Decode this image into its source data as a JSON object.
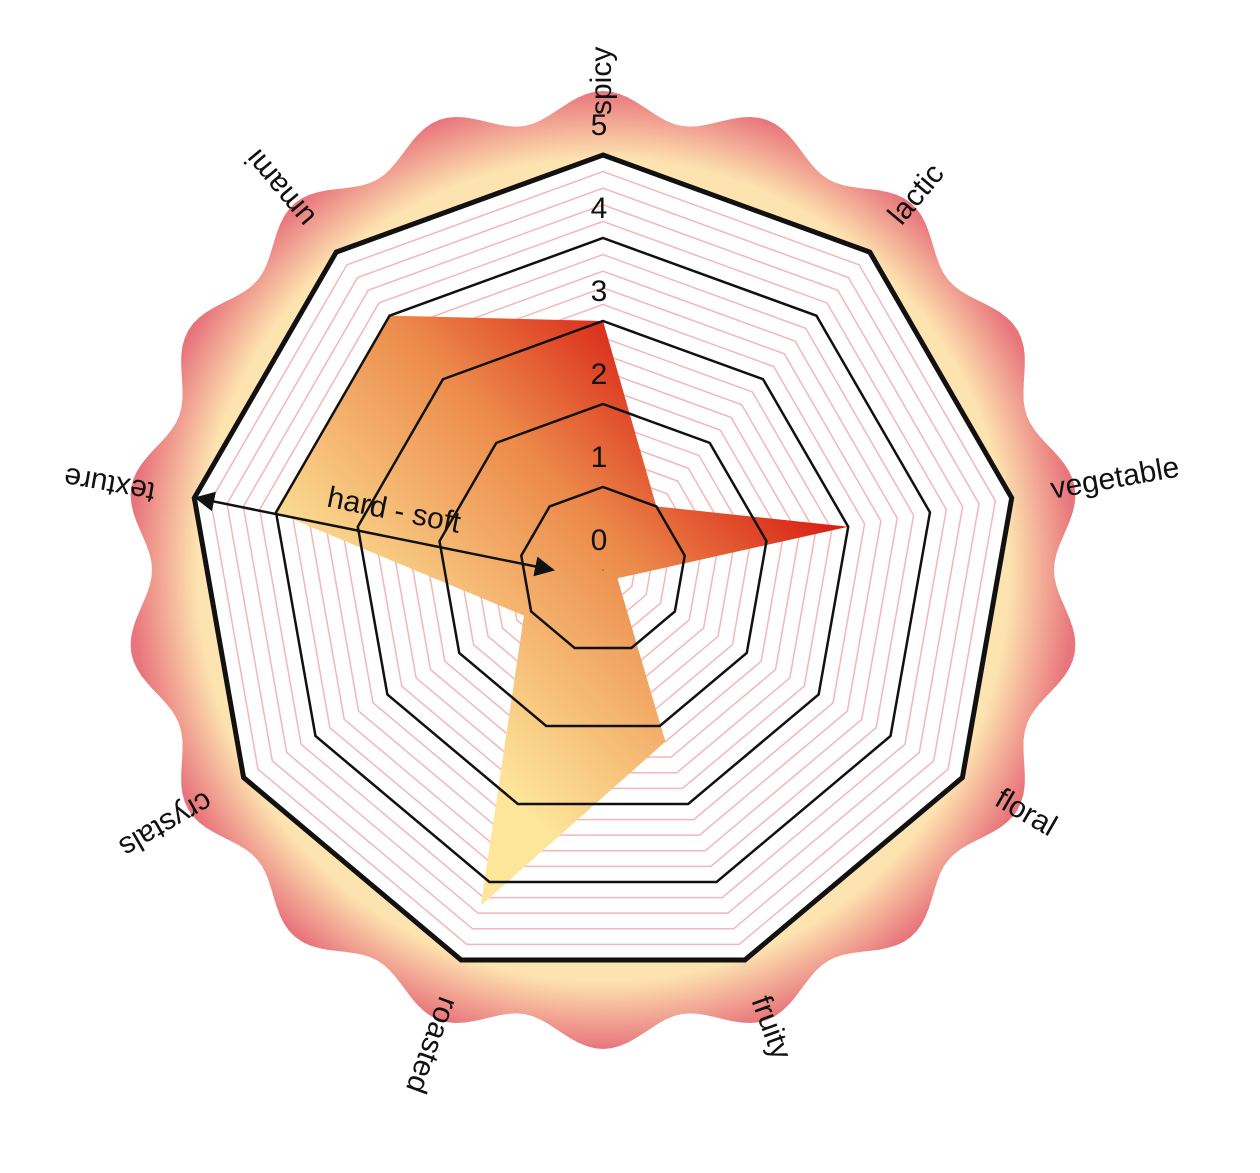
{
  "chart_data": {
    "type": "radar",
    "categories": [
      "spicy",
      "lactic",
      "vegetable",
      "floral",
      "fruity",
      "roasted",
      "crystals",
      "texture",
      "umami"
    ],
    "values": [
      3,
      1,
      3,
      0.2,
      2.2,
      4.3,
      1.1,
      4,
      4
    ],
    "color": "#d40000",
    "rlim": [
      0,
      5
    ],
    "rticks": [
      0,
      1,
      2,
      3,
      4,
      5
    ],
    "annotation": "hard - soft"
  }
}
